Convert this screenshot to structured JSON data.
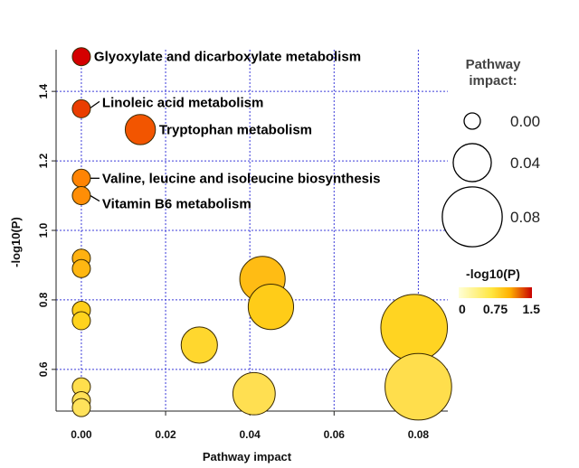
{
  "chart_data": {
    "type": "scatter",
    "xlabel": "Pathway impact",
    "ylabel": "-log10(P)",
    "xlim": [
      -0.006,
      0.087
    ],
    "ylim": [
      0.48,
      1.52
    ],
    "xticks": [
      0.0,
      0.02,
      0.04,
      0.06,
      0.08
    ],
    "xtick_labels": [
      "0.00",
      "0.02",
      "0.04",
      "0.06",
      "0.08"
    ],
    "yticks": [
      0.6,
      0.8,
      1.0,
      1.2,
      1.4
    ],
    "ytick_labels": [
      "0.6",
      "0.8",
      "1.0",
      "1.2",
      "1.4"
    ],
    "grid": true,
    "color_scale": {
      "low": "#ffffd6",
      "mid": "#ffd21a",
      "high": "#d40000",
      "min": 0.0,
      "max": 1.5
    },
    "points": [
      {
        "x": 0.0,
        "y": 1.5,
        "impact": 0.0
      },
      {
        "x": 0.0,
        "y": 1.35,
        "impact": 0.0
      },
      {
        "x": 0.014,
        "y": 1.29,
        "impact": 0.02
      },
      {
        "x": 0.0,
        "y": 1.15,
        "impact": 0.0
      },
      {
        "x": 0.0,
        "y": 1.1,
        "impact": 0.0
      },
      {
        "x": 0.0,
        "y": 0.92,
        "impact": 0.0
      },
      {
        "x": 0.0,
        "y": 0.89,
        "impact": 0.0
      },
      {
        "x": 0.043,
        "y": 0.86,
        "impact": 0.045
      },
      {
        "x": 0.045,
        "y": 0.78,
        "impact": 0.045
      },
      {
        "x": 0.0,
        "y": 0.77,
        "impact": 0.0
      },
      {
        "x": 0.0,
        "y": 0.74,
        "impact": 0.0
      },
      {
        "x": 0.079,
        "y": 0.72,
        "impact": 0.08
      },
      {
        "x": 0.028,
        "y": 0.67,
        "impact": 0.03
      },
      {
        "x": 0.08,
        "y": 0.55,
        "impact": 0.08
      },
      {
        "x": 0.0,
        "y": 0.55,
        "impact": 0.0
      },
      {
        "x": 0.041,
        "y": 0.53,
        "impact": 0.04
      },
      {
        "x": 0.0,
        "y": 0.51,
        "impact": 0.0
      },
      {
        "x": 0.0,
        "y": 0.49,
        "impact": 0.0
      }
    ],
    "annotations": [
      {
        "text": "Glyoxylate and dicarboxylate metabolism",
        "point": 0,
        "leader": false
      },
      {
        "text": "Linoleic acid metabolism",
        "point": 1,
        "leader": true
      },
      {
        "text": "Tryptophan metabolism",
        "point": 2,
        "leader": false
      },
      {
        "text": "Valine, leucine and isoleucine biosynthesis",
        "point": 3,
        "leader": true
      },
      {
        "text": "Vitamin B6 metabolism",
        "point": 4,
        "leader": true
      }
    ],
    "size_legend": {
      "title_lines": [
        "Pathway",
        "impact:"
      ],
      "entries": [
        {
          "value": 0.0,
          "label": "0.00"
        },
        {
          "value": 0.04,
          "label": "0.04"
        },
        {
          "value": 0.08,
          "label": "0.08"
        }
      ]
    },
    "color_legend": {
      "title": "-log10(P)",
      "ticks": [
        {
          "value": 0,
          "label": "0"
        },
        {
          "value": 0.75,
          "label": "0.75"
        },
        {
          "value": 1.5,
          "label": "1.5"
        }
      ]
    }
  }
}
